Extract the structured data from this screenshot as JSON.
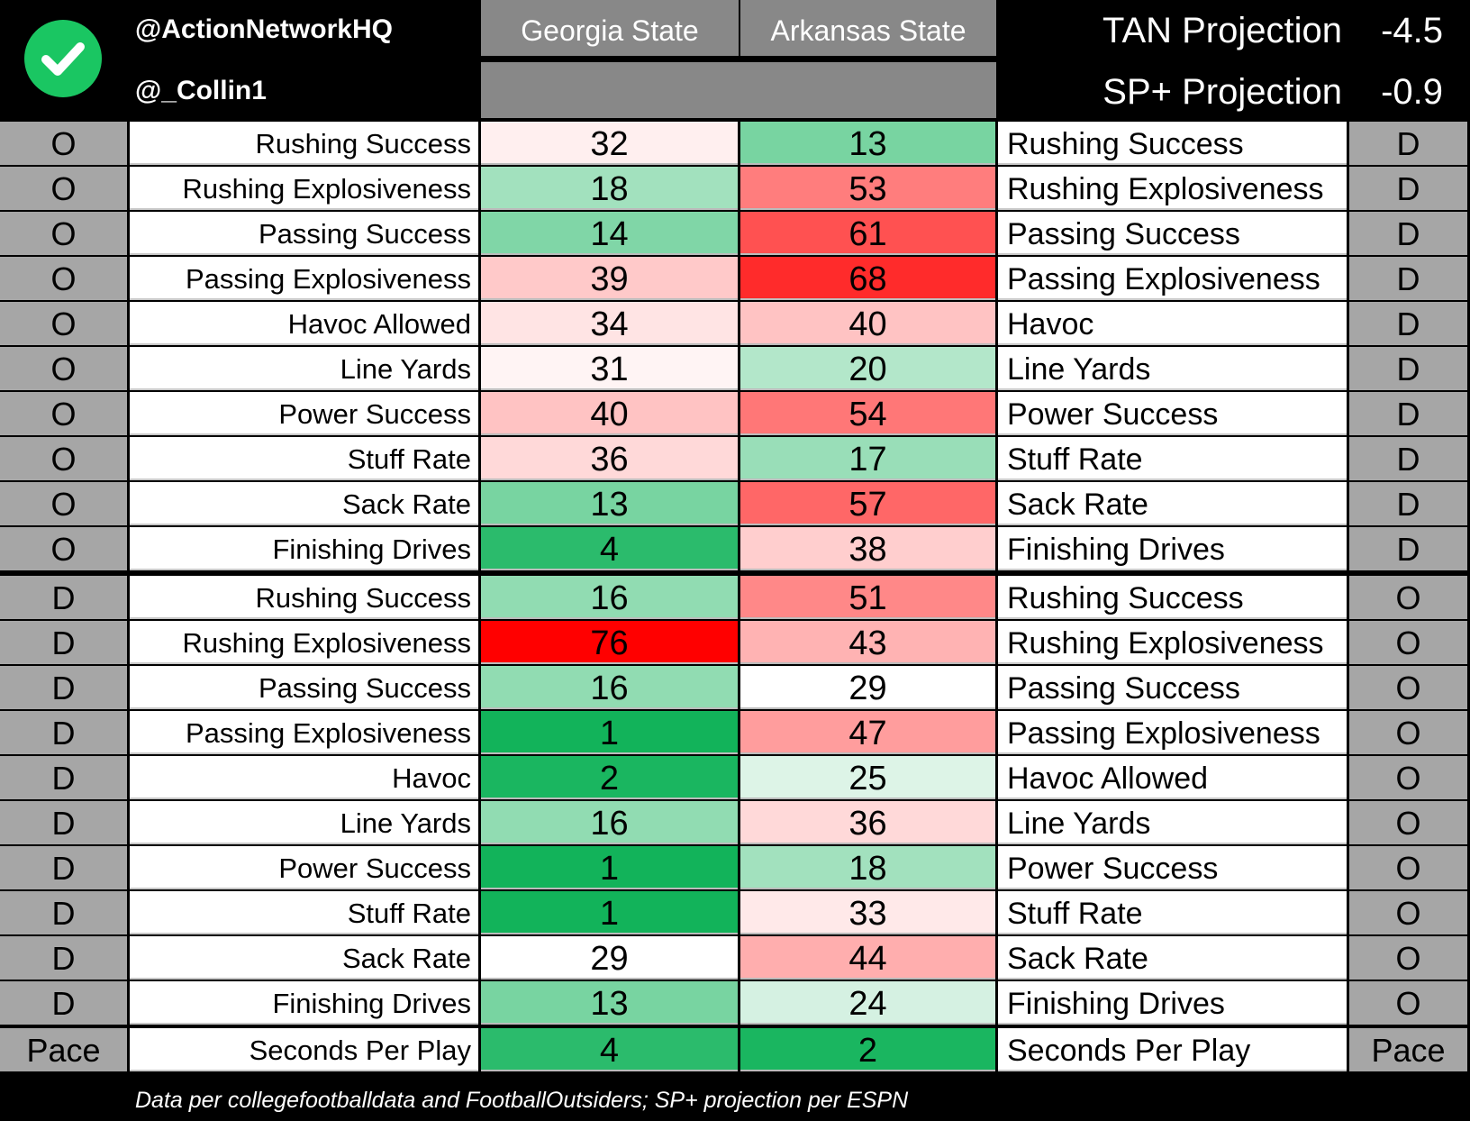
{
  "header": {
    "handle_primary": "@ActionNetworkHQ",
    "handle_secondary": "@_Collin1",
    "team_left": "Georgia State",
    "team_right": "Arkansas State",
    "tan_label": "TAN Projection",
    "tan_value": "-4.5",
    "sp_label": "SP+ Projection",
    "sp_value": "-0.9",
    "logo_icon": "check-circle-icon"
  },
  "footer": "Data per collegefootballdata and FootballOutsiders; SP+ projection per ESPN",
  "colors": {
    "good": "#12b35a",
    "bad": "#ff0000",
    "neutral": "#ffffff",
    "side": "#a6a6a6"
  },
  "chart_data": {
    "type": "table",
    "columns": [
      "Georgia State",
      "Arkansas State"
    ],
    "rows": [
      {
        "side_left": "O",
        "left_label": "Rushing Success",
        "v1": 32,
        "v2": 13,
        "right_label": "Rushing Success",
        "side_right": "D"
      },
      {
        "side_left": "O",
        "left_label": "Rushing Explosiveness",
        "v1": 18,
        "v2": 53,
        "right_label": "Rushing Explosiveness",
        "side_right": "D"
      },
      {
        "side_left": "O",
        "left_label": "Passing Success",
        "v1": 14,
        "v2": 61,
        "right_label": "Passing Success",
        "side_right": "D"
      },
      {
        "side_left": "O",
        "left_label": "Passing Explosiveness",
        "v1": 39,
        "v2": 68,
        "right_label": "Passing Explosiveness",
        "side_right": "D"
      },
      {
        "side_left": "O",
        "left_label": "Havoc Allowed",
        "v1": 34,
        "v2": 40,
        "right_label": "Havoc",
        "side_right": "D"
      },
      {
        "side_left": "O",
        "left_label": "Line Yards",
        "v1": 31,
        "v2": 20,
        "right_label": "Line Yards",
        "side_right": "D"
      },
      {
        "side_left": "O",
        "left_label": "Power Success",
        "v1": 40,
        "v2": 54,
        "right_label": "Power Success",
        "side_right": "D"
      },
      {
        "side_left": "O",
        "left_label": "Stuff Rate",
        "v1": 36,
        "v2": 17,
        "right_label": "Stuff Rate",
        "side_right": "D"
      },
      {
        "side_left": "O",
        "left_label": "Sack Rate",
        "v1": 13,
        "v2": 57,
        "right_label": "Sack Rate",
        "side_right": "D"
      },
      {
        "side_left": "O",
        "left_label": "Finishing Drives",
        "v1": 4,
        "v2": 38,
        "right_label": "Finishing Drives",
        "side_right": "D"
      },
      {
        "side_left": "D",
        "left_label": "Rushing Success",
        "v1": 16,
        "v2": 51,
        "right_label": "Rushing Success",
        "side_right": "O"
      },
      {
        "side_left": "D",
        "left_label": "Rushing Explosiveness",
        "v1": 76,
        "v2": 43,
        "right_label": "Rushing Explosiveness",
        "side_right": "O"
      },
      {
        "side_left": "D",
        "left_label": "Passing Success",
        "v1": 16,
        "v2": 29,
        "right_label": "Passing Success",
        "side_right": "O"
      },
      {
        "side_left": "D",
        "left_label": "Passing Explosiveness",
        "v1": 1,
        "v2": 47,
        "right_label": "Passing Explosiveness",
        "side_right": "O"
      },
      {
        "side_left": "D",
        "left_label": "Havoc",
        "v1": 2,
        "v2": 25,
        "right_label": "Havoc Allowed",
        "side_right": "O"
      },
      {
        "side_left": "D",
        "left_label": "Line Yards",
        "v1": 16,
        "v2": 36,
        "right_label": "Line Yards",
        "side_right": "O"
      },
      {
        "side_left": "D",
        "left_label": "Power Success",
        "v1": 1,
        "v2": 18,
        "right_label": "Power Success",
        "side_right": "O"
      },
      {
        "side_left": "D",
        "left_label": "Stuff Rate",
        "v1": 1,
        "v2": 33,
        "right_label": "Stuff Rate",
        "side_right": "O"
      },
      {
        "side_left": "D",
        "left_label": "Sack Rate",
        "v1": 29,
        "v2": 44,
        "right_label": "Sack Rate",
        "side_right": "O"
      },
      {
        "side_left": "D",
        "left_label": "Finishing Drives",
        "v1": 13,
        "v2": 24,
        "right_label": "Finishing Drives",
        "side_right": "O"
      },
      {
        "side_left": "Pace",
        "left_label": "Seconds Per Play",
        "v1": 4,
        "v2": 2,
        "right_label": "Seconds Per Play",
        "side_right": "Pace"
      }
    ]
  }
}
